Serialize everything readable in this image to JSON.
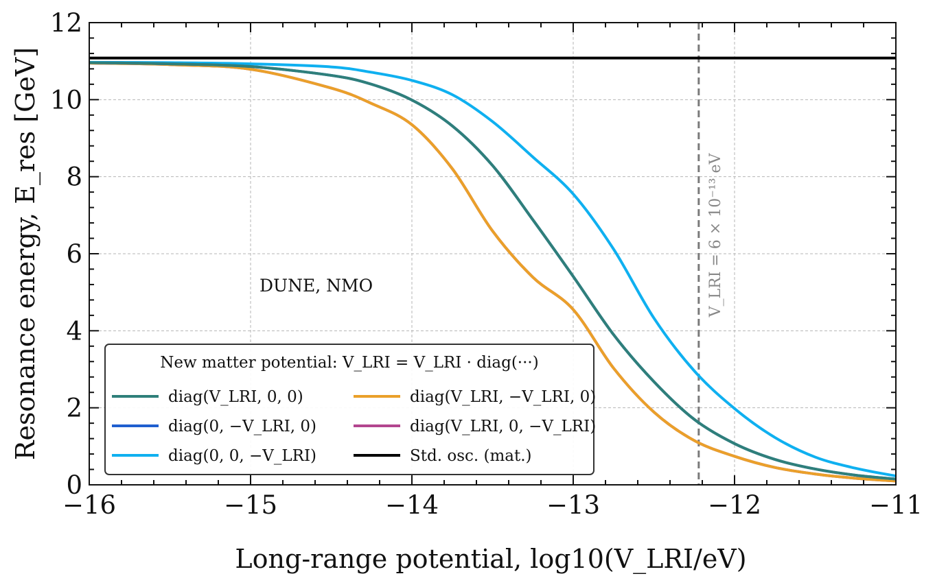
{
  "chart_data": {
    "type": "line",
    "xlabel": "Long-range potential, log10(V_LRI/eV)",
    "ylabel": "Resonance energy, E_res [GeV]",
    "xlim": [
      -16,
      -11
    ],
    "ylim": [
      0,
      12
    ],
    "x_ticks": [
      -16,
      -15,
      -14,
      -13,
      -12,
      -11
    ],
    "x_tick_labels": [
      "−16",
      "−15",
      "−14",
      "−13",
      "−12",
      "−11"
    ],
    "y_ticks": [
      0,
      2,
      4,
      6,
      8,
      10,
      12
    ],
    "y_tick_labels": [
      "0",
      "2",
      "4",
      "6",
      "8",
      "10",
      "12"
    ],
    "grid": true,
    "annotation": "DUNE, NMO",
    "vertical_line": {
      "x": -12.222,
      "label": "V_LRI = 6 × 10⁻¹³ eV",
      "color": "#7a7a7a"
    },
    "legend": {
      "title": "New matter potential: V_LRI = V_LRI · diag(···)",
      "placement": "lower-left"
    },
    "x": [
      -16,
      -15.5,
      -15,
      -14.5,
      -14.25,
      -14,
      -13.75,
      -13.5,
      -13.25,
      -13,
      -12.75,
      -12.5,
      -12.25,
      -12,
      -11.75,
      -11.5,
      -11.25,
      -11
    ],
    "series": [
      {
        "name": "diag(V_LRI, 0, 0)",
        "color": "#2f7f7a",
        "values": [
          10.96,
          10.93,
          10.86,
          10.63,
          10.4,
          9.99,
          9.32,
          8.29,
          6.88,
          5.41,
          3.9,
          2.68,
          1.7,
          1.07,
          0.66,
          0.41,
          0.25,
          0.15
        ]
      },
      {
        "name": "diag(0, −V_LRI, 0)",
        "color": "#1f5fcf",
        "values": [
          10.96,
          10.93,
          10.86,
          10.63,
          10.4,
          9.99,
          9.32,
          8.29,
          6.88,
          5.41,
          3.9,
          2.68,
          1.7,
          1.07,
          0.66,
          0.41,
          0.25,
          0.15
        ]
      },
      {
        "name": "diag(0, 0, −V_LRI)",
        "color": "#0fb0f0",
        "values": [
          10.97,
          10.96,
          10.93,
          10.85,
          10.71,
          10.5,
          10.13,
          9.43,
          8.51,
          7.55,
          6.12,
          4.33,
          2.96,
          1.98,
          1.23,
          0.72,
          0.43,
          0.23
        ]
      },
      {
        "name": "diag(V_LRI, −V_LRI, 0)",
        "color": "#eaa02a",
        "values": [
          10.95,
          10.91,
          10.79,
          10.3,
          9.9,
          9.35,
          8.21,
          6.59,
          5.39,
          4.55,
          3.03,
          1.89,
          1.15,
          0.74,
          0.45,
          0.28,
          0.17,
          0.1
        ]
      },
      {
        "name": "diag(V_LRI, 0, −V_LRI)",
        "color": "#b3468f",
        "values": [
          10.95,
          10.91,
          10.79,
          10.3,
          9.9,
          9.35,
          8.21,
          6.59,
          5.39,
          4.55,
          3.03,
          1.89,
          1.15,
          0.74,
          0.45,
          0.28,
          0.17,
          0.1
        ]
      },
      {
        "name": "Std. osc. (mat.)",
        "color": "#000000",
        "values": [
          11.08,
          11.08,
          11.08,
          11.08,
          11.08,
          11.08,
          11.08,
          11.08,
          11.08,
          11.08,
          11.08,
          11.08,
          11.08,
          11.08,
          11.08,
          11.08,
          11.08,
          11.08
        ]
      }
    ]
  }
}
